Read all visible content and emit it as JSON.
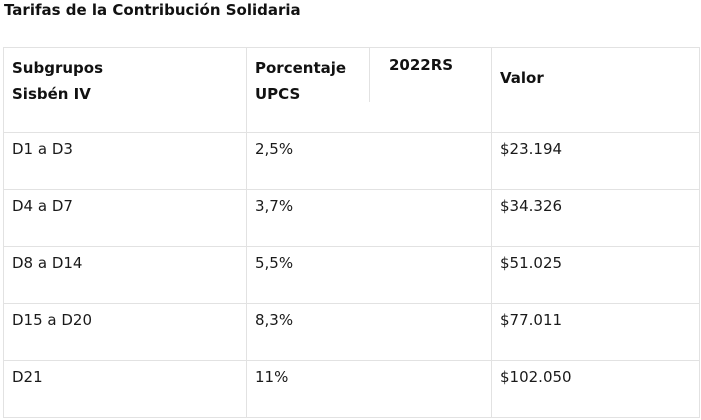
{
  "title": "Tarifas de la Contribución Solidaria",
  "table": {
    "header": {
      "subgroup_line1": "Subgrupos",
      "subgroup_line2": "Sisbén IV",
      "percentage_line1": "Porcentaje",
      "percentage_line2": "UPCS",
      "year": "2022RS",
      "value": "Valor"
    },
    "rows": [
      {
        "subgroup": "D1 a D3",
        "percentage": "2,5%",
        "value": "$23.194"
      },
      {
        "subgroup": "D4 a D7",
        "percentage": "3,7%",
        "value": "$34.326"
      },
      {
        "subgroup": "D8 a D14",
        "percentage": "5,5%",
        "value": "$51.025"
      },
      {
        "subgroup": "D15 a D20",
        "percentage": "8,3%",
        "value": "$77.011"
      },
      {
        "subgroup": "D21",
        "percentage": "11%",
        "value": "$102.050"
      }
    ]
  }
}
